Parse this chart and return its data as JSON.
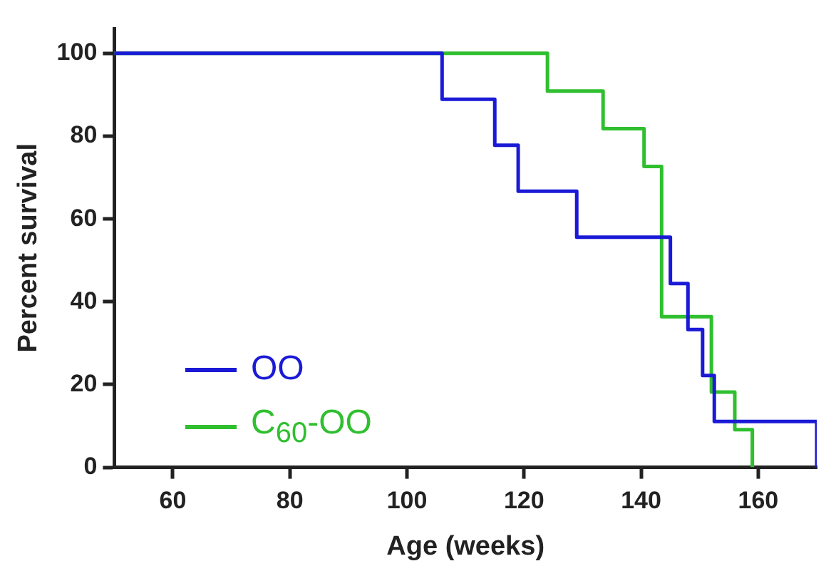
{
  "chart_data": {
    "type": "step",
    "xlabel": "Age (weeks)",
    "ylabel": "Percent survival",
    "xlim": [
      50,
      170
    ],
    "ylim": [
      0,
      106
    ],
    "xticks": [
      60,
      80,
      100,
      120,
      140,
      160
    ],
    "yticks": [
      0,
      20,
      40,
      60,
      80,
      100
    ],
    "grid": false,
    "legend": "bottom left",
    "marker": "none",
    "line_style": "solid",
    "series": [
      {
        "name": "OO",
        "color": "#1a1ad6",
        "x": [
          50,
          106,
          115,
          119,
          129,
          145,
          148,
          150.5,
          152.5,
          170
        ],
        "values": [
          100,
          88.9,
          77.8,
          66.7,
          55.6,
          44.4,
          33.3,
          22.2,
          11.1,
          0
        ]
      },
      {
        "name": "C$_{60}$-OO",
        "color": "#2fbf2f",
        "x": [
          50,
          124,
          133.5,
          140.5,
          143.5,
          152,
          156,
          159
        ],
        "values": [
          100,
          90.9,
          81.8,
          72.7,
          36.4,
          18.2,
          9.1,
          0
        ]
      }
    ]
  }
}
